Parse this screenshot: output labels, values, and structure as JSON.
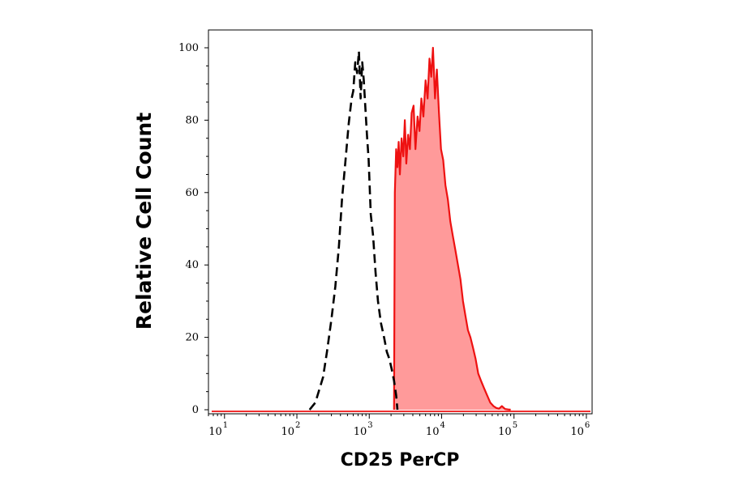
{
  "chart_data": {
    "type": "area",
    "title": "",
    "xlabel": "CD25 PerCP",
    "ylabel": "Relative Cell Count",
    "xscale": "log",
    "xlim": [
      6,
      1200000
    ],
    "ylim": [
      0,
      100
    ],
    "grid": false,
    "legend": "none",
    "x_ticks": [
      {
        "value": 10,
        "base": "10",
        "exp": "1"
      },
      {
        "value": 100,
        "base": "10",
        "exp": "2"
      },
      {
        "value": 1000,
        "base": "10",
        "exp": "3"
      },
      {
        "value": 10000,
        "base": "10",
        "exp": "4"
      },
      {
        "value": 100000,
        "base": "10",
        "exp": "5"
      },
      {
        "value": 1000000,
        "base": "10",
        "exp": "6"
      }
    ],
    "y_ticks": [
      "0",
      "20",
      "40",
      "60",
      "80",
      "100"
    ],
    "series": [
      {
        "style": "dashed",
        "color": "#000000",
        "fill": "none",
        "x": [
          150,
          180,
          200,
          230,
          260,
          300,
          340,
          380,
          420,
          470,
          520,
          570,
          600,
          640,
          680,
          720,
          760,
          800,
          840,
          880,
          930,
          980,
          1050,
          1130,
          1220,
          1320,
          1450,
          1600,
          1750,
          1900,
          2050,
          2200,
          2350,
          2450
        ],
        "y": [
          0,
          2,
          5,
          9,
          16,
          25,
          34,
          45,
          58,
          69,
          79,
          86,
          88,
          96,
          93,
          99,
          86,
          96,
          91,
          84,
          76,
          69,
          54,
          48,
          38,
          30,
          24,
          20,
          16,
          14,
          11,
          8,
          4,
          0
        ]
      },
      {
        "style": "solid",
        "color": "#ee1111",
        "fill": "#ff9a9a",
        "x": [
          2200,
          2260,
          2350,
          2450,
          2550,
          2650,
          2800,
          2950,
          3100,
          3250,
          3450,
          3650,
          3850,
          4100,
          4350,
          4650,
          4950,
          5250,
          5600,
          6000,
          6400,
          6800,
          7200,
          7600,
          8100,
          8600,
          9200,
          9800,
          10500,
          11300,
          12200,
          13200,
          14300,
          15500,
          16800,
          18200,
          19700,
          21300,
          23100,
          25000,
          27200,
          29500,
          32000,
          35000,
          38500,
          42500,
          47000,
          52000,
          57000,
          62000,
          68000,
          75000,
          82000,
          90000
        ],
        "y": [
          0,
          60,
          72,
          67,
          74,
          65,
          75,
          70,
          80,
          68,
          76,
          72,
          82,
          84,
          72,
          81,
          77,
          86,
          81,
          91,
          86,
          97,
          92,
          100,
          86,
          94,
          82,
          72,
          69,
          62,
          58,
          52,
          48,
          44,
          40,
          36,
          30,
          26,
          22,
          20,
          17,
          14,
          10,
          8,
          6,
          4,
          2,
          1,
          0.5,
          0.3,
          1,
          0.2,
          0.1,
          0
        ]
      }
    ]
  }
}
